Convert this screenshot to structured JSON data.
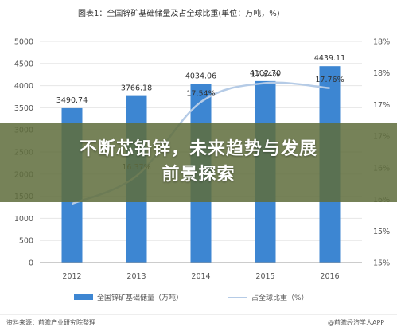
{
  "chart_data": {
    "type": "bar+line",
    "title": "图表1：全国锌矿基础储量及占全球比重(单位：万吨，%)",
    "categories": [
      "2012",
      "2013",
      "2014",
      "2015",
      "2016"
    ],
    "series": [
      {
        "name": "全国锌矿基础储量（万吨）",
        "type": "bar",
        "axis": "left",
        "values": [
          3490.74,
          3766.18,
          4034.06,
          4102.7,
          4439.11
        ],
        "labels": [
          "3490.74",
          "3766.18",
          "4034.06",
          "4102.70",
          "4439.11"
        ]
      },
      {
        "name": "占全球比重（%）",
        "type": "line",
        "axis": "right",
        "values": [
          15.93,
          16.37,
          17.54,
          17.84,
          17.76
        ],
        "labels": [
          "",
          "16.37%",
          "17.54%",
          "17.84%",
          "17.76%"
        ]
      }
    ],
    "ylim_left": [
      0,
      5000
    ],
    "yticks_left": [
      "0",
      "500",
      "1000",
      "1500",
      "2000",
      "2500",
      "3000",
      "3500",
      "4000",
      "4500",
      "5000"
    ],
    "ylim_right": [
      15,
      18.5
    ],
    "yticks_right": [
      "15%",
      "15%",
      "16%",
      "16%",
      "17%",
      "17%",
      "18%",
      "18%"
    ],
    "grid": true,
    "legend_position": "bottom",
    "colors": {
      "bar": "#3d86d2",
      "line": "#b5cbe6",
      "text": "#333333"
    }
  },
  "overlay": {
    "line1": "不断芯铅锌，未来趋势与发展",
    "line2": "前景探索"
  },
  "footer": {
    "source": "资料来源：前瞻产业研究院整理",
    "brand": "@前瞻经济学人APP"
  }
}
